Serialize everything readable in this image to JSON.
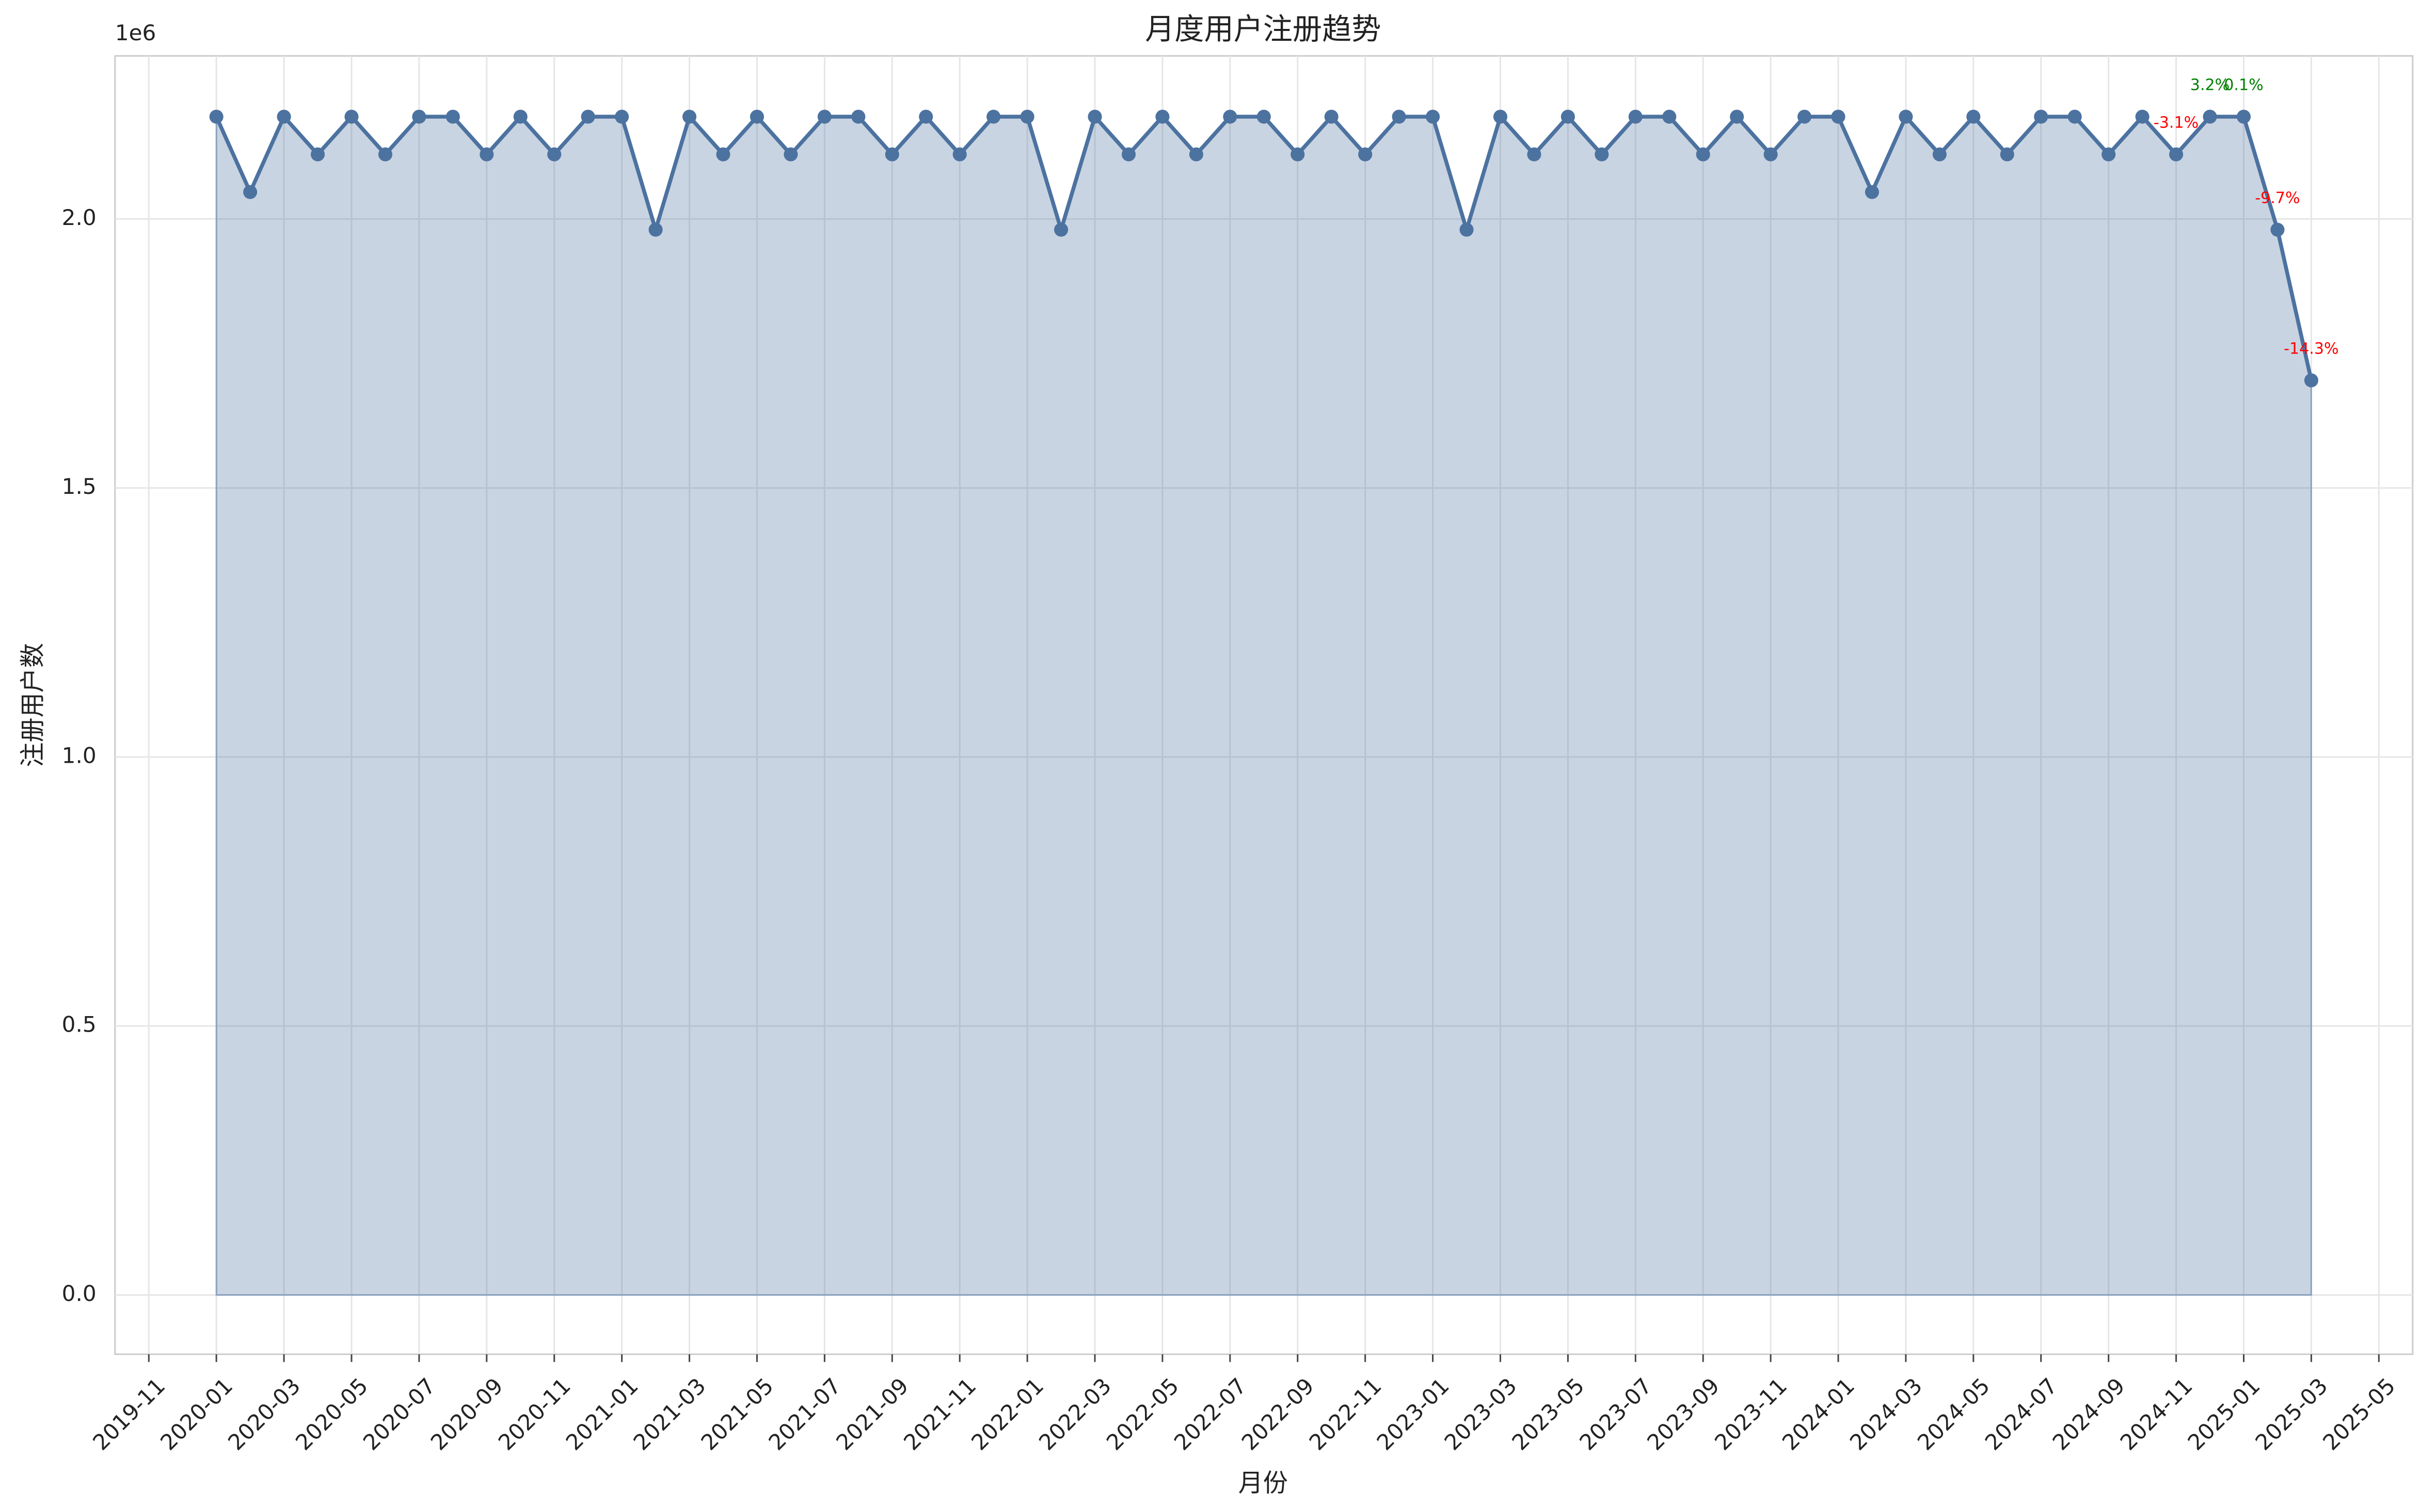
{
  "chart_data": {
    "type": "line",
    "title": "月度用户注册趋势",
    "x_label": "月份",
    "y_label": "注册用户数",
    "y_offset_label": "1e6",
    "x": [
      "2020-01",
      "2020-02",
      "2020-03",
      "2020-04",
      "2020-05",
      "2020-06",
      "2020-07",
      "2020-08",
      "2020-09",
      "2020-10",
      "2020-11",
      "2020-12",
      "2021-01",
      "2021-02",
      "2021-03",
      "2021-04",
      "2021-05",
      "2021-06",
      "2021-07",
      "2021-08",
      "2021-09",
      "2021-10",
      "2021-11",
      "2021-12",
      "2022-01",
      "2022-02",
      "2022-03",
      "2022-04",
      "2022-05",
      "2022-06",
      "2022-07",
      "2022-08",
      "2022-09",
      "2022-10",
      "2022-11",
      "2022-12",
      "2023-01",
      "2023-02",
      "2023-03",
      "2023-04",
      "2023-05",
      "2023-06",
      "2023-07",
      "2023-08",
      "2023-09",
      "2023-10",
      "2023-11",
      "2023-12",
      "2024-01",
      "2024-02",
      "2024-03",
      "2024-04",
      "2024-05",
      "2024-06",
      "2024-07",
      "2024-08",
      "2024-09",
      "2024-10",
      "2024-11",
      "2024-12",
      "2025-01",
      "2025-02",
      "2025-03"
    ],
    "values": [
      2190000,
      2050000,
      2190000,
      2120000,
      2190000,
      2120000,
      2190000,
      2190000,
      2120000,
      2190000,
      2120000,
      2190000,
      2190000,
      1980000,
      2190000,
      2120000,
      2190000,
      2120000,
      2190000,
      2190000,
      2120000,
      2190000,
      2120000,
      2190000,
      2190000,
      1980000,
      2190000,
      2120000,
      2190000,
      2120000,
      2190000,
      2190000,
      2120000,
      2190000,
      2120000,
      2190000,
      2190000,
      1980000,
      2190000,
      2120000,
      2190000,
      2120000,
      2190000,
      2190000,
      2120000,
      2190000,
      2120000,
      2190000,
      2190000,
      2050000,
      2190000,
      2120000,
      2190000,
      2120000,
      2190000,
      2190000,
      2120000,
      2190000,
      2120000,
      2190000,
      2190000,
      1980000,
      1700000
    ],
    "color": "#4c72a0",
    "area": true,
    "annotations": [
      {
        "x": "2024-11",
        "text": "-3.1%",
        "color": "red"
      },
      {
        "x": "2024-12",
        "text": "3.2%",
        "color": "green"
      },
      {
        "x": "2025-01",
        "text": "0.1%",
        "color": "green"
      },
      {
        "x": "2025-02",
        "text": "-9.7%",
        "color": "red"
      },
      {
        "x": "2025-03",
        "text": "-14.3%",
        "color": "red"
      }
    ],
    "xlim": [
      "2019-10",
      "2025-06"
    ],
    "xticks": [
      "2019-11",
      "2020-01",
      "2020-03",
      "2020-05",
      "2020-07",
      "2020-09",
      "2020-11",
      "2021-01",
      "2021-03",
      "2021-05",
      "2021-07",
      "2021-09",
      "2021-11",
      "2022-01",
      "2022-03",
      "2022-05",
      "2022-07",
      "2022-09",
      "2022-11",
      "2023-01",
      "2023-03",
      "2023-05",
      "2023-07",
      "2023-09",
      "2023-11",
      "2024-01",
      "2024-03",
      "2024-05",
      "2024-07",
      "2024-09",
      "2024-11",
      "2025-01",
      "2025-03",
      "2025-05"
    ],
    "ylim": [
      -110000,
      2303000
    ],
    "yticks": [
      {
        "value": 0,
        "label": "0.0"
      },
      {
        "value": 500000,
        "label": "0.5"
      },
      {
        "value": 1000000,
        "label": "1.0"
      },
      {
        "value": 1500000,
        "label": "1.5"
      },
      {
        "value": 2000000,
        "label": "2.0"
      }
    ],
    "grid": true
  }
}
